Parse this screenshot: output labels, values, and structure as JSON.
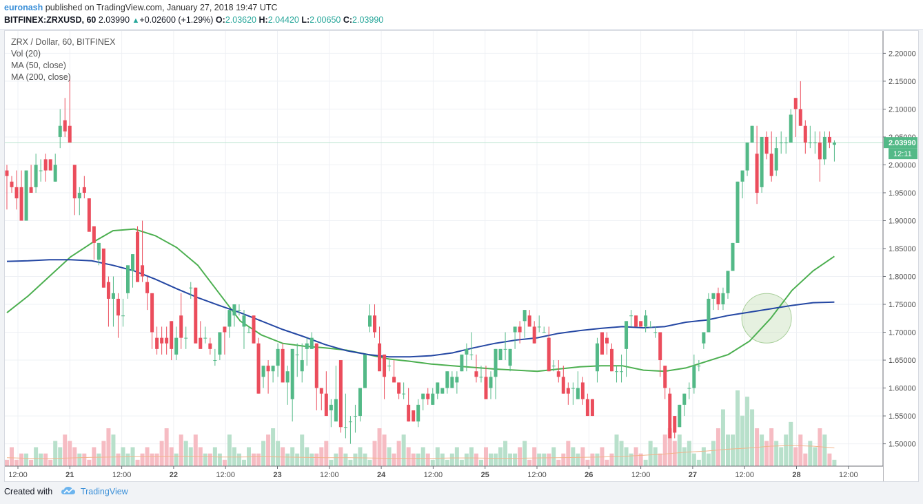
{
  "header": {
    "author": "euronash",
    "published_text": "published on TradingView.com, January 27, 2018 19:47 UTC",
    "symbol": "BITFINEX:ZRXUSD, 60",
    "last": "2.03990",
    "change": "+0.02600 (+1.29%)",
    "open_label": "O:",
    "open": "2.03620",
    "high_label": "H:",
    "high": "2.04420",
    "low_label": "L:",
    "low": "2.00650",
    "close_label": "C:",
    "close": "2.03990"
  },
  "legend": {
    "title": "ZRX / Dollar, 60, BITFINEX",
    "vol": "Vol (20)",
    "ma50": "MA (50, close)",
    "ma200": "MA (200, close)"
  },
  "price_tag": {
    "price": "2.03990",
    "countdown": "12:11"
  },
  "footer": {
    "created_with": "Created with",
    "brand": "TradingView"
  },
  "colors": {
    "up": "#53b987",
    "down": "#eb4d5c",
    "ma50": "#4caf50",
    "ma200": "#2447a3",
    "vol_up": "#b8e0cb",
    "vol_down": "#f6bcc3",
    "vol_ma": "#f2b38a"
  },
  "chart_data": {
    "type": "candlestick",
    "title": "ZRX / Dollar, 60, BITFINEX",
    "ylim": [
      1.46,
      2.24
    ],
    "y_ticks": [
      "1.50000",
      "1.55000",
      "1.60000",
      "1.65000",
      "1.70000",
      "1.75000",
      "1.80000",
      "1.85000",
      "1.90000",
      "1.95000",
      "2.00000",
      "2.05000",
      "2.10000",
      "2.15000",
      "2.20000"
    ],
    "x_ticks": [
      "12:00",
      "21",
      "12:00",
      "22",
      "12:00",
      "23",
      "12:00",
      "24",
      "12:00",
      "25",
      "12:00",
      "26",
      "12:00",
      "27",
      "12:00",
      "28",
      "12:00"
    ],
    "candles_ohlc": [
      [
        1.99,
        2.0,
        1.92,
        1.98
      ],
      [
        1.97,
        1.98,
        1.95,
        1.96
      ],
      [
        1.96,
        1.99,
        1.92,
        1.94
      ],
      [
        1.96,
        1.99,
        1.9,
        1.9
      ],
      [
        1.9,
        1.99,
        1.9,
        1.99
      ],
      [
        1.96,
        2.0,
        1.95,
        1.95
      ],
      [
        1.96,
        2.02,
        1.95,
        2.0
      ],
      [
        1.99,
        2.01,
        1.97,
        1.99
      ],
      [
        2.01,
        2.02,
        1.97,
        1.99
      ],
      [
        2.01,
        2.01,
        1.99,
        1.99
      ],
      [
        1.97,
        2.02,
        1.97,
        2.0
      ],
      [
        2.05,
        2.1,
        2.03,
        2.07
      ],
      [
        2.08,
        2.12,
        2.05,
        2.06
      ],
      [
        2.07,
        2.16,
        2.04,
        2.04
      ],
      [
        2.0,
        2.0,
        1.91,
        1.94
      ],
      [
        1.94,
        1.96,
        1.91,
        1.95
      ],
      [
        1.96,
        1.98,
        1.94,
        1.95
      ],
      [
        1.94,
        1.94,
        1.9,
        1.88
      ],
      [
        1.89,
        1.89,
        1.83,
        1.86
      ],
      [
        1.83,
        1.86,
        1.82,
        1.86
      ],
      [
        1.85,
        1.85,
        1.78,
        1.78
      ],
      [
        1.79,
        1.8,
        1.71,
        1.76
      ],
      [
        1.76,
        1.8,
        1.71,
        1.77
      ],
      [
        1.76,
        1.77,
        1.69,
        1.73
      ],
      [
        1.73,
        1.76,
        1.71,
        1.73
      ],
      [
        1.77,
        1.82,
        1.76,
        1.82
      ],
      [
        1.81,
        1.84,
        1.78,
        1.84
      ],
      [
        1.88,
        1.89,
        1.81,
        1.79
      ],
      [
        1.82,
        1.9,
        1.79,
        1.8
      ],
      [
        1.79,
        1.8,
        1.74,
        1.77
      ],
      [
        1.77,
        1.77,
        1.67,
        1.7
      ],
      [
        1.69,
        1.71,
        1.66,
        1.67
      ],
      [
        1.69,
        1.71,
        1.66,
        1.68
      ],
      [
        1.69,
        1.71,
        1.66,
        1.68
      ],
      [
        1.72,
        1.72,
        1.65,
        1.67
      ],
      [
        1.66,
        1.71,
        1.65,
        1.69
      ],
      [
        1.73,
        1.77,
        1.67,
        1.69
      ],
      [
        1.69,
        1.71,
        1.67,
        1.69
      ],
      [
        1.78,
        1.79,
        1.76,
        1.78
      ],
      [
        1.78,
        1.78,
        1.72,
        1.68
      ],
      [
        1.69,
        1.72,
        1.68,
        1.67
      ],
      [
        1.69,
        1.71,
        1.68,
        1.69
      ],
      [
        1.68,
        1.69,
        1.66,
        1.67
      ],
      [
        1.65,
        1.67,
        1.64,
        1.65
      ],
      [
        1.66,
        1.7,
        1.65,
        1.7
      ],
      [
        1.71,
        1.71,
        1.66,
        1.7
      ],
      [
        1.71,
        1.73,
        1.69,
        1.74
      ],
      [
        1.73,
        1.74,
        1.71,
        1.75
      ],
      [
        1.74,
        1.75,
        1.73,
        1.74
      ],
      [
        1.71,
        1.74,
        1.67,
        1.73
      ],
      [
        1.7,
        1.71,
        1.7,
        1.7
      ],
      [
        1.73,
        1.73,
        1.68,
        1.68
      ],
      [
        1.68,
        1.69,
        1.59,
        1.59
      ],
      [
        1.62,
        1.64,
        1.6,
        1.64
      ],
      [
        1.64,
        1.65,
        1.59,
        1.63
      ],
      [
        1.63,
        1.64,
        1.61,
        1.64
      ],
      [
        1.64,
        1.68,
        1.62,
        1.67
      ],
      [
        1.67,
        1.68,
        1.61,
        1.61
      ],
      [
        1.61,
        1.64,
        1.57,
        1.63
      ],
      [
        1.58,
        1.67,
        1.54,
        1.67
      ],
      [
        1.66,
        1.68,
        1.62,
        1.66
      ],
      [
        1.63,
        1.68,
        1.61,
        1.65
      ],
      [
        1.67,
        1.69,
        1.64,
        1.68
      ],
      [
        1.67,
        1.7,
        1.67,
        1.69
      ],
      [
        1.68,
        1.68,
        1.56,
        1.6
      ],
      [
        1.6,
        1.6,
        1.56,
        1.59
      ],
      [
        1.59,
        1.63,
        1.55,
        1.55
      ],
      [
        1.56,
        1.58,
        1.53,
        1.57
      ],
      [
        1.54,
        1.64,
        1.54,
        1.58
      ],
      [
        1.65,
        1.65,
        1.52,
        1.53
      ],
      [
        1.53,
        1.59,
        1.51,
        1.53
      ],
      [
        1.54,
        1.55,
        1.5,
        1.54
      ],
      [
        1.55,
        1.57,
        1.52,
        1.55
      ],
      [
        1.55,
        1.56,
        1.54,
        1.6
      ],
      [
        1.6,
        1.66,
        1.6,
        1.66
      ],
      [
        1.71,
        1.75,
        1.7,
        1.73
      ],
      [
        1.73,
        1.75,
        1.69,
        1.7
      ],
      [
        1.68,
        1.71,
        1.65,
        1.63
      ],
      [
        1.66,
        1.66,
        1.58,
        1.62
      ],
      [
        1.64,
        1.65,
        1.63,
        1.64
      ],
      [
        1.62,
        1.65,
        1.61,
        1.61
      ],
      [
        1.61,
        1.61,
        1.58,
        1.59
      ],
      [
        1.59,
        1.61,
        1.58,
        1.59
      ],
      [
        1.57,
        1.6,
        1.54,
        1.54
      ],
      [
        1.56,
        1.56,
        1.54,
        1.54
      ],
      [
        1.54,
        1.58,
        1.53,
        1.57
      ],
      [
        1.58,
        1.59,
        1.56,
        1.59
      ],
      [
        1.59,
        1.6,
        1.57,
        1.58
      ],
      [
        1.57,
        1.6,
        1.57,
        1.59
      ],
      [
        1.59,
        1.61,
        1.58,
        1.61
      ],
      [
        1.59,
        1.6,
        1.59,
        1.6
      ],
      [
        1.6,
        1.63,
        1.59,
        1.63
      ],
      [
        1.6,
        1.63,
        1.6,
        1.62
      ],
      [
        1.61,
        1.63,
        1.59,
        1.62
      ],
      [
        1.63,
        1.66,
        1.63,
        1.66
      ],
      [
        1.66,
        1.68,
        1.63,
        1.67
      ],
      [
        1.66,
        1.7,
        1.65,
        1.66
      ],
      [
        1.63,
        1.66,
        1.61,
        1.62
      ],
      [
        1.62,
        1.64,
        1.61,
        1.62
      ],
      [
        1.62,
        1.64,
        1.58,
        1.58
      ],
      [
        1.6,
        1.63,
        1.58,
        1.62
      ],
      [
        1.62,
        1.67,
        1.58,
        1.67
      ],
      [
        1.65,
        1.67,
        1.65,
        1.67
      ],
      [
        1.67,
        1.7,
        1.65,
        1.67
      ],
      [
        1.64,
        1.67,
        1.63,
        1.67
      ],
      [
        1.7,
        1.71,
        1.67,
        1.71
      ],
      [
        1.71,
        1.72,
        1.68,
        1.7
      ],
      [
        1.72,
        1.74,
        1.69,
        1.74
      ],
      [
        1.73,
        1.74,
        1.72,
        1.71
      ],
      [
        1.71,
        1.72,
        1.68,
        1.68
      ],
      [
        1.71,
        1.73,
        1.7,
        1.71
      ],
      [
        1.7,
        1.71,
        1.7,
        1.7
      ],
      [
        1.69,
        1.71,
        1.63,
        1.63
      ],
      [
        1.64,
        1.65,
        1.63,
        1.64
      ],
      [
        1.63,
        1.65,
        1.61,
        1.62
      ],
      [
        1.62,
        1.64,
        1.59,
        1.59
      ],
      [
        1.6,
        1.61,
        1.57,
        1.59
      ],
      [
        1.6,
        1.61,
        1.57,
        1.6
      ],
      [
        1.58,
        1.63,
        1.58,
        1.6
      ],
      [
        1.61,
        1.62,
        1.57,
        1.58
      ],
      [
        1.58,
        1.59,
        1.55,
        1.55
      ],
      [
        1.58,
        1.58,
        1.55,
        1.55
      ],
      [
        1.63,
        1.69,
        1.61,
        1.68
      ],
      [
        1.7,
        1.7,
        1.66,
        1.66
      ],
      [
        1.69,
        1.7,
        1.66,
        1.68
      ],
      [
        1.67,
        1.68,
        1.63,
        1.63
      ],
      [
        1.63,
        1.64,
        1.61,
        1.63
      ],
      [
        1.63,
        1.66,
        1.61,
        1.63
      ],
      [
        1.67,
        1.72,
        1.62,
        1.72
      ],
      [
        1.73,
        1.74,
        1.71,
        1.73
      ],
      [
        1.73,
        1.73,
        1.71,
        1.71
      ],
      [
        1.72,
        1.72,
        1.71,
        1.71
      ],
      [
        1.71,
        1.74,
        1.7,
        1.73
      ],
      [
        1.71,
        1.72,
        1.71,
        1.71
      ],
      [
        1.7,
        1.71,
        1.69,
        1.7
      ],
      [
        1.7,
        1.7,
        1.62,
        1.65
      ],
      [
        1.64,
        1.64,
        1.58,
        1.6
      ],
      [
        1.59,
        1.6,
        1.51,
        1.51
      ],
      [
        1.55,
        1.55,
        1.51,
        1.52
      ],
      [
        1.53,
        1.57,
        1.53,
        1.57
      ],
      [
        1.57,
        1.59,
        1.55,
        1.59
      ],
      [
        1.6,
        1.61,
        1.58,
        1.6
      ],
      [
        1.6,
        1.66,
        1.59,
        1.64
      ],
      [
        1.64,
        1.65,
        1.63,
        1.64
      ],
      [
        1.68,
        1.7,
        1.67,
        1.7
      ],
      [
        1.7,
        1.77,
        1.7,
        1.76
      ],
      [
        1.76,
        1.77,
        1.74,
        1.77
      ],
      [
        1.77,
        1.78,
        1.74,
        1.75
      ],
      [
        1.75,
        1.78,
        1.74,
        1.77
      ],
      [
        1.77,
        1.81,
        1.76,
        1.81
      ],
      [
        1.81,
        1.86,
        1.81,
        1.86
      ],
      [
        1.86,
        1.97,
        1.86,
        1.97
      ],
      [
        1.97,
        1.99,
        1.94,
        1.99
      ],
      [
        1.99,
        2.04,
        1.98,
        2.04
      ],
      [
        2.04,
        2.07,
        2.04,
        2.07
      ],
      [
        2.02,
        2.07,
        1.93,
        1.95
      ],
      [
        1.96,
        2.05,
        1.95,
        2.05
      ],
      [
        2.05,
        2.06,
        2.01,
        2.02
      ],
      [
        2.02,
        2.06,
        1.97,
        1.98
      ],
      [
        1.99,
        2.05,
        1.98,
        2.03
      ],
      [
        2.04,
        2.06,
        2.02,
        2.04
      ],
      [
        2.04,
        2.05,
        2.02,
        2.04
      ],
      [
        2.04,
        2.1,
        2.04,
        2.09
      ],
      [
        2.12,
        2.12,
        2.05,
        2.1
      ],
      [
        2.1,
        2.15,
        2.07,
        2.07
      ],
      [
        2.07,
        2.08,
        2.02,
        2.04
      ],
      [
        2.04,
        2.07,
        2.03,
        2.04
      ],
      [
        2.04,
        2.06,
        2.02,
        2.04
      ],
      [
        2.04,
        2.06,
        1.97,
        2.01
      ],
      [
        2.01,
        2.06,
        2.0,
        2.05
      ],
      [
        2.05,
        2.06,
        2.03,
        2.04
      ],
      [
        2.036,
        2.044,
        2.006,
        2.0399
      ]
    ],
    "ma50": [
      1.735,
      1.765,
      1.8,
      1.835,
      1.86,
      1.882,
      1.885,
      1.873,
      1.852,
      1.82,
      1.77,
      1.72,
      1.695,
      1.68,
      1.675,
      1.672,
      1.668,
      1.66,
      1.652,
      1.648,
      1.643,
      1.64,
      1.637,
      1.634,
      1.632,
      1.63,
      1.634,
      1.638,
      1.64,
      1.64,
      1.632,
      1.63,
      1.636,
      1.648,
      1.66,
      1.684,
      1.725,
      1.775,
      1.81,
      1.836
    ],
    "ma200": [
      1.827,
      1.828,
      1.83,
      1.83,
      1.828,
      1.82,
      1.81,
      1.795,
      1.778,
      1.762,
      1.748,
      1.735,
      1.72,
      1.705,
      1.692,
      1.678,
      1.667,
      1.66,
      1.656,
      1.656,
      1.658,
      1.663,
      1.672,
      1.68,
      1.686,
      1.69,
      1.698,
      1.703,
      1.707,
      1.71,
      1.708,
      1.71,
      1.718,
      1.722,
      1.73,
      1.736,
      1.742,
      1.748,
      1.753,
      1.754
    ],
    "volume": [
      1,
      3,
      1,
      2,
      2,
      1,
      3,
      2,
      2,
      1,
      4,
      3,
      5,
      4,
      3,
      2,
      2,
      1,
      3,
      2,
      4,
      6,
      5,
      2,
      3,
      2,
      3,
      1,
      2,
      3,
      2,
      2,
      4,
      6,
      3,
      2,
      5,
      4,
      3,
      5,
      3,
      2,
      2,
      3,
      2,
      1,
      5,
      3,
      2,
      1,
      3,
      2,
      2,
      4,
      5,
      6,
      4,
      3,
      2,
      3,
      2,
      5,
      3,
      2,
      2,
      3,
      4,
      1,
      2,
      3,
      2,
      1,
      2,
      3,
      2,
      1,
      4,
      6,
      5,
      3,
      2,
      4,
      5,
      3,
      2,
      2,
      3,
      2,
      1,
      3,
      2,
      1,
      2,
      3,
      1,
      2,
      3,
      2,
      1,
      3,
      2,
      2,
      3,
      4,
      2,
      2,
      3,
      4,
      1,
      3,
      2,
      2,
      2,
      3,
      1,
      2,
      4,
      3,
      2,
      3,
      1,
      2,
      2,
      3,
      1,
      2,
      5,
      4,
      3,
      2,
      3,
      2,
      1,
      4,
      3,
      2,
      5,
      6,
      4,
      5,
      3,
      4,
      2,
      1,
      3,
      2,
      4,
      6,
      9,
      5,
      5,
      12,
      8,
      11,
      9,
      6,
      5,
      4,
      6,
      4,
      3,
      5,
      7,
      3,
      5,
      2,
      4,
      3,
      6,
      5,
      2,
      1,
      2
    ],
    "vol_ma_percent": [
      2.8,
      2.6,
      2.5,
      2.7,
      2.9,
      3.0,
      3.1,
      3.2,
      3.3,
      3.2,
      3.0,
      3.0,
      3.1,
      3.0,
      2.9,
      2.8,
      2.8,
      2.7,
      2.6,
      2.6,
      2.6,
      2.7,
      2.7,
      2.6,
      2.6,
      2.7,
      2.8,
      2.9,
      3.0,
      3.2,
      3.6,
      4.0,
      4.6,
      5.0,
      5.6,
      6.0,
      6.6,
      6.8,
      6.6,
      6.0
    ],
    "annotation": {
      "type": "circle",
      "center_price": 1.725
    }
  }
}
